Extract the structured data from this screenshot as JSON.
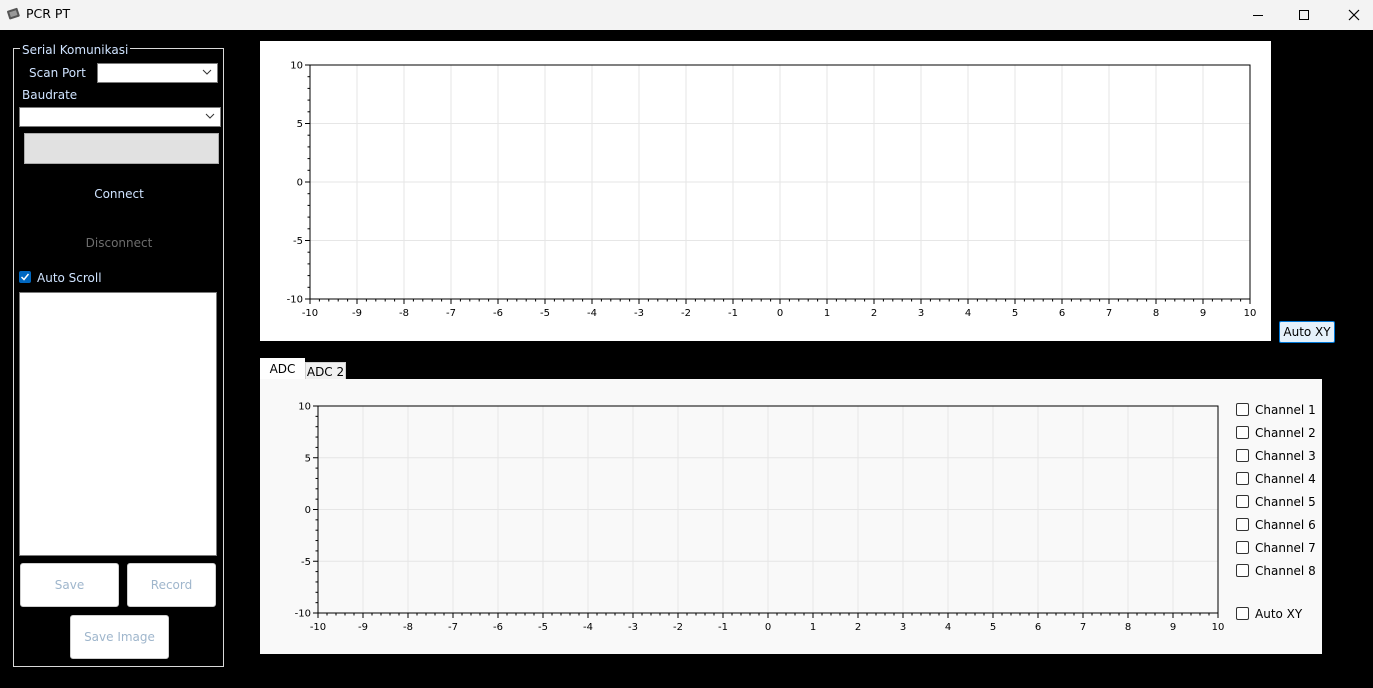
{
  "window": {
    "title": "PCR PT"
  },
  "serial": {
    "group_title": "Serial Komunikasi",
    "scan_port_label": "Scan Port",
    "scan_port_value": "",
    "baudrate_label": "Baudrate",
    "baudrate_value": "",
    "connect_label": "Connect",
    "disconnect_label": "Disconnect",
    "auto_scroll_label": "Auto Scroll",
    "auto_scroll_checked": true,
    "log_text": "",
    "save_label": "Save",
    "record_label": "Record",
    "save_image_label": "Save Image"
  },
  "top_chart": {
    "auto_xy_label": "Auto XY"
  },
  "tabs": [
    {
      "label": "ADC",
      "active": true
    },
    {
      "label": "ADC 2",
      "active": false
    }
  ],
  "channels": [
    {
      "label": "Channel 1",
      "checked": false
    },
    {
      "label": "Channel 2",
      "checked": false
    },
    {
      "label": "Channel 3",
      "checked": false
    },
    {
      "label": "Channel 4",
      "checked": false
    },
    {
      "label": "Channel 5",
      "checked": false
    },
    {
      "label": "Channel 6",
      "checked": false
    },
    {
      "label": "Channel 7",
      "checked": false
    },
    {
      "label": "Channel 8",
      "checked": false
    }
  ],
  "adc_auto_xy_label": "Auto XY",
  "chart_data": [
    {
      "type": "line",
      "title": "",
      "xlim": [
        -10,
        10
      ],
      "ylim": [
        -10,
        10
      ],
      "x_ticks": [
        "-10",
        "-9",
        "-8",
        "-7",
        "-6",
        "-5",
        "-4",
        "-3",
        "-2",
        "-1",
        "0",
        "1",
        "2",
        "3",
        "4",
        "5",
        "6",
        "7",
        "8",
        "9",
        "10"
      ],
      "y_ticks": [
        "10",
        "5",
        "0",
        "-5",
        "-10"
      ],
      "series": [],
      "grid": true
    },
    {
      "type": "line",
      "title": "",
      "xlim": [
        -10,
        10
      ],
      "ylim": [
        -10,
        10
      ],
      "x_ticks": [
        "-10",
        "-9",
        "-8",
        "-7",
        "-6",
        "-5",
        "-4",
        "-3",
        "-2",
        "-1",
        "0",
        "1",
        "2",
        "3",
        "4",
        "5",
        "6",
        "7",
        "8",
        "9",
        "10"
      ],
      "y_ticks": [
        "10",
        "5",
        "0",
        "-5",
        "-10"
      ],
      "series": [],
      "grid": true
    }
  ]
}
